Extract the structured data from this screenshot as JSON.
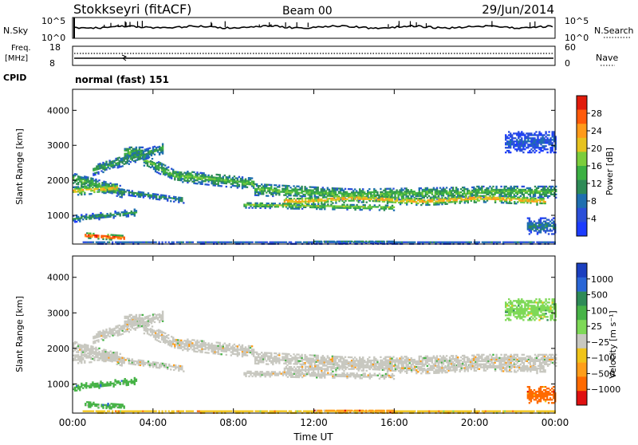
{
  "header": {
    "station": "Stokkseyri (fitACF)",
    "beam": "Beam 00",
    "date": "29/Jun/2014"
  },
  "status_panels": {
    "nsky": {
      "label": "N.Sky",
      "ticks": [
        "10^5",
        "10^0"
      ],
      "right_ticks": [
        "10^5",
        "10^0"
      ],
      "right_label": "N.Search"
    },
    "freq": {
      "label_line1": "Freq.",
      "label_line2": "[MHz]",
      "ticks": [
        "18",
        "8"
      ],
      "right_ticks": [
        "60",
        "0"
      ],
      "right_label": "Nave"
    },
    "cpid": {
      "label": "CPID",
      "value": "normal (fast) 151"
    }
  },
  "colors": {
    "power_scale": [
      "#1c3cff",
      "#2b4fd9",
      "#1f6fb0",
      "#2e8b57",
      "#3cb043",
      "#7ccd3c",
      "#e6c21f",
      "#ff9a1a",
      "#ff5a0a",
      "#e11b0b"
    ],
    "velocity_scale": [
      "#1b3fbf",
      "#2a66d6",
      "#2e8b57",
      "#47b347",
      "#7ed957",
      "#c8c8c0",
      "#f0c419",
      "#ff9e1a",
      "#ff6a00",
      "#e01010"
    ]
  },
  "chart_data": [
    {
      "type": "heatmap",
      "name": "power",
      "xlabel": "",
      "ylabel": "Slant Range [km]",
      "x_range": [
        0,
        24
      ],
      "ylim": [
        180,
        4600
      ],
      "yticks": [
        "1000",
        "2000",
        "3000",
        "4000"
      ],
      "colorbar": {
        "label": "Power [dB]",
        "ticks": [
          "4",
          "8",
          "12",
          "16",
          "20",
          "24",
          "28"
        ],
        "range": [
          0,
          30
        ]
      }
    },
    {
      "type": "heatmap",
      "name": "velocity",
      "xlabel": "Time UT",
      "ylabel": "Slant Range [km]",
      "x_range": [
        0,
        24
      ],
      "ylim": [
        180,
        4600
      ],
      "xticks": [
        "00:00",
        "04:00",
        "08:00",
        "12:00",
        "16:00",
        "20:00",
        "00:00"
      ],
      "yticks": [
        "1000",
        "2000",
        "3000",
        "4000"
      ],
      "colorbar": {
        "label": "Velocity [m s⁻¹]",
        "ticks": [
          "1000",
          "500",
          "100",
          "25",
          "−25",
          "−100",
          "−500",
          "−1000"
        ]
      }
    }
  ]
}
